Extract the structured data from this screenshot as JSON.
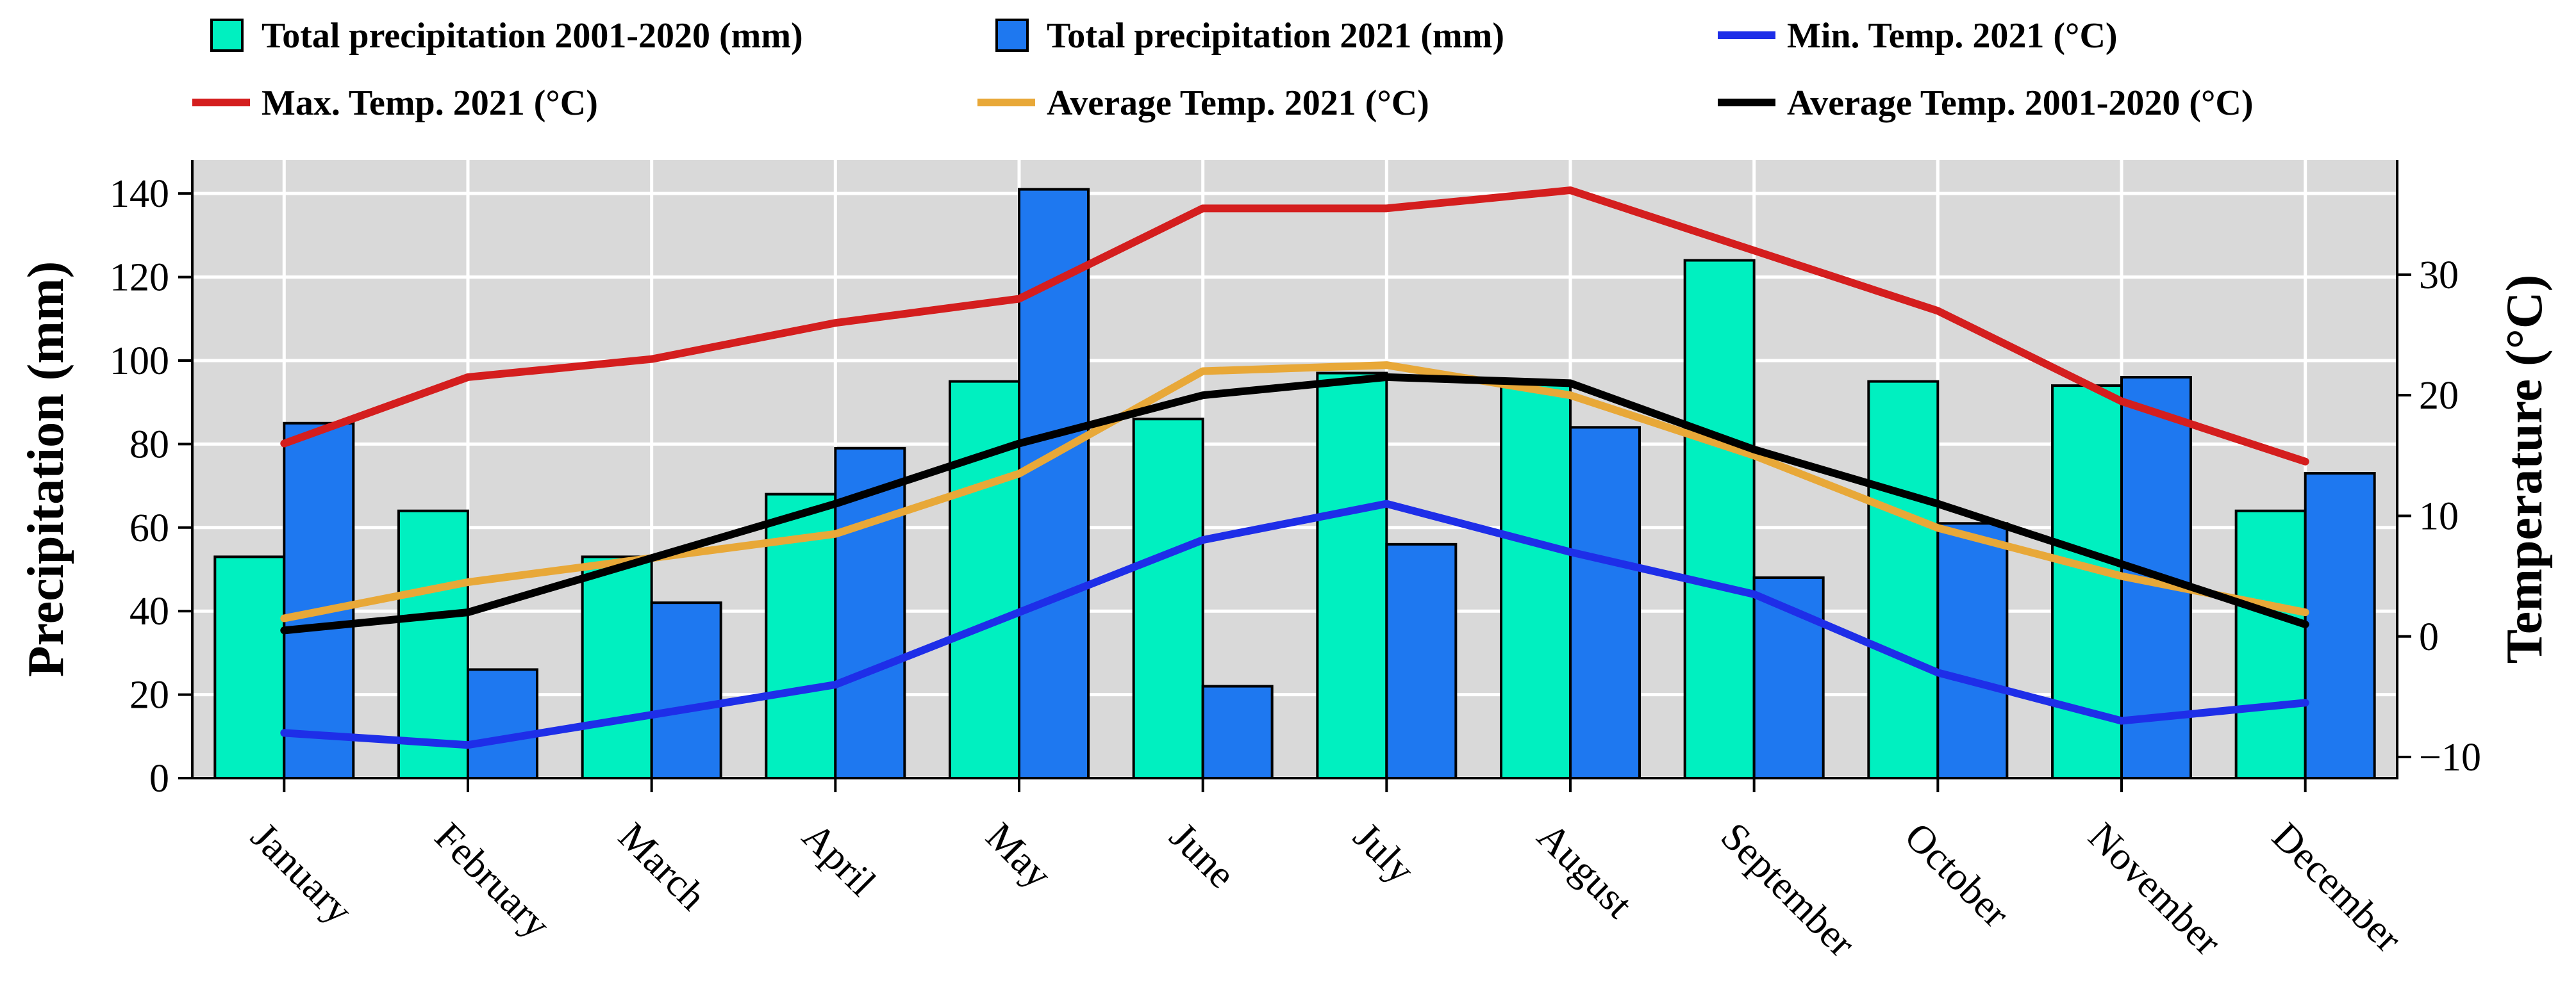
{
  "chart_data": {
    "type": "bar",
    "categories": [
      "January",
      "February",
      "March",
      "April",
      "May",
      "June",
      "July",
      "August",
      "September",
      "October",
      "November",
      "December"
    ],
    "series": [
      {
        "name": "Total precipitation 2001-2020 (mm)",
        "kind": "bar",
        "axis": "left",
        "color": "#00F0C0",
        "values": [
          53,
          64,
          53,
          68,
          95,
          86,
          97,
          95,
          124,
          95,
          94,
          64
        ]
      },
      {
        "name": "Total precipitation 2021 (mm)",
        "kind": "bar",
        "axis": "left",
        "color": "#1E78F0",
        "values": [
          85,
          26,
          42,
          79,
          141,
          22,
          56,
          84,
          48,
          61,
          96,
          73
        ]
      },
      {
        "name": "Min. Temp. 2021 (°C)",
        "kind": "line",
        "axis": "right",
        "color": "#1E2EE8",
        "values": [
          -8,
          -9,
          -6.5,
          -4,
          2,
          8,
          11,
          7,
          3.5,
          -3,
          -7,
          -5.5
        ]
      },
      {
        "name": "Max. Temp. 2021 (°C)",
        "kind": "line",
        "axis": "right",
        "color": "#D41E1E",
        "values": [
          16,
          21.5,
          23,
          26,
          28,
          35.5,
          35.5,
          37,
          32,
          27,
          19.5,
          14.5
        ]
      },
      {
        "name": "Average Temp. 2021 (°C)",
        "kind": "line",
        "axis": "right",
        "color": "#E8A838",
        "values": [
          1.5,
          4.5,
          6.5,
          8.5,
          13.5,
          22,
          22.5,
          20,
          15,
          9,
          5,
          2
        ]
      },
      {
        "name": "Average Temp. 2001-2020 (°C)",
        "kind": "line",
        "axis": "right",
        "color": "#000000",
        "values": [
          0.5,
          2,
          6.5,
          11,
          16,
          20,
          21.5,
          21,
          15.5,
          11,
          6,
          1
        ]
      }
    ],
    "ylabel": "Precipitation (mm)",
    "y2label": "Temperature (°C)",
    "ylim": [
      0,
      148
    ],
    "y2lim": [
      -11.75,
      39.5
    ],
    "yticks": [
      0,
      20,
      40,
      60,
      80,
      100,
      120,
      140
    ],
    "y2ticks": [
      -10,
      0,
      10,
      20,
      30
    ],
    "grid": true,
    "legend_position": "top"
  },
  "colors": {
    "plot_background": "#D9D9D9",
    "grid": "#FFFFFF"
  }
}
